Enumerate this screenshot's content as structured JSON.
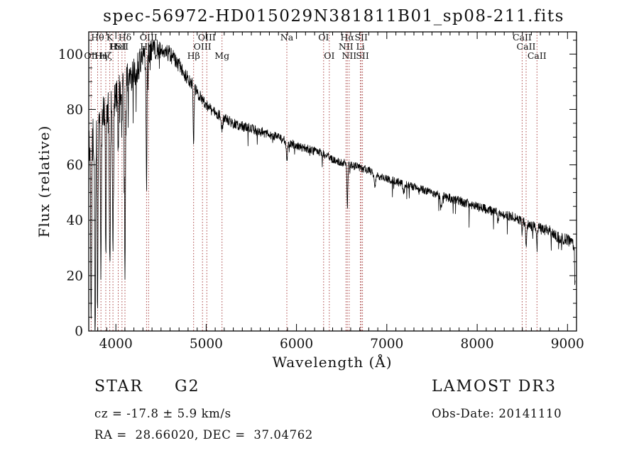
{
  "title": "spec-56972-HD015029N381811B01_sp08-211.fits",
  "chart_data": {
    "type": "line",
    "title": "spec-56972-HD015029N381811B01_sp08-211.fits",
    "xlabel": "Wavelength (Å)",
    "ylabel": "Flux (relative)",
    "xlim": [
      3700,
      9100
    ],
    "ylim": [
      0,
      108
    ],
    "x_ticks": [
      4000,
      5000,
      6000,
      7000,
      8000,
      9000
    ],
    "y_ticks": [
      0,
      20,
      40,
      60,
      80,
      100
    ],
    "grid": false,
    "trace_color": "#000000",
    "marker_color": "#aa4444",
    "label_color": "#1a1a1a",
    "continuum": [
      [
        3705,
        68
      ],
      [
        3770,
        70
      ],
      [
        3800,
        74
      ],
      [
        3850,
        78
      ],
      [
        3900,
        80
      ],
      [
        3950,
        82
      ],
      [
        4000,
        85
      ],
      [
        4050,
        88
      ],
      [
        4100,
        90
      ],
      [
        4150,
        92
      ],
      [
        4200,
        94
      ],
      [
        4250,
        96
      ],
      [
        4300,
        98
      ],
      [
        4350,
        100
      ],
      [
        4400,
        101
      ],
      [
        4450,
        102
      ],
      [
        4500,
        102
      ],
      [
        4550,
        101
      ],
      [
        4600,
        100
      ],
      [
        4650,
        98
      ],
      [
        4700,
        96
      ],
      [
        4750,
        93
      ],
      [
        4800,
        91
      ],
      [
        4850,
        89
      ],
      [
        4900,
        86
      ],
      [
        4950,
        84
      ],
      [
        5000,
        82
      ],
      [
        5050,
        80
      ],
      [
        5100,
        79
      ],
      [
        5150,
        78
      ],
      [
        5200,
        77
      ],
      [
        5300,
        75
      ],
      [
        5400,
        74
      ],
      [
        5500,
        73
      ],
      [
        5600,
        72
      ],
      [
        5700,
        71
      ],
      [
        5800,
        70
      ],
      [
        5900,
        68
      ],
      [
        6000,
        67
      ],
      [
        6100,
        66
      ],
      [
        6200,
        65
      ],
      [
        6300,
        64
      ],
      [
        6400,
        62
      ],
      [
        6500,
        61
      ],
      [
        6600,
        60
      ],
      [
        6700,
        59
      ],
      [
        6800,
        58
      ],
      [
        6900,
        56
      ],
      [
        7000,
        55
      ],
      [
        7100,
        54
      ],
      [
        7200,
        53
      ],
      [
        7300,
        52
      ],
      [
        7400,
        51
      ],
      [
        7500,
        50
      ],
      [
        7600,
        49
      ],
      [
        7700,
        48
      ],
      [
        7800,
        47
      ],
      [
        7900,
        46
      ],
      [
        8000,
        45
      ],
      [
        8100,
        44
      ],
      [
        8200,
        43
      ],
      [
        8300,
        42
      ],
      [
        8400,
        41
      ],
      [
        8500,
        40
      ],
      [
        8600,
        38
      ],
      [
        8700,
        37
      ],
      [
        8800,
        36
      ],
      [
        8900,
        34
      ],
      [
        9000,
        33
      ],
      [
        9085,
        30
      ]
    ],
    "absorption_lines": [
      {
        "wl": 3727,
        "depth": 68,
        "sigma": 5
      },
      {
        "wl": 3771,
        "depth": 75,
        "sigma": 5
      },
      {
        "wl": 3798,
        "depth": 68,
        "sigma": 5
      },
      {
        "wl": 3835,
        "depth": 60,
        "sigma": 5
      },
      {
        "wl": 3889,
        "depth": 55,
        "sigma": 5
      },
      {
        "wl": 3933,
        "depth": 60,
        "sigma": 6
      },
      {
        "wl": 3968,
        "depth": 55,
        "sigma": 6
      },
      {
        "wl": 4026,
        "depth": 22,
        "sigma": 4
      },
      {
        "wl": 4068,
        "depth": 18,
        "sigma": 4
      },
      {
        "wl": 4101,
        "depth": 68,
        "sigma": 5
      },
      {
        "wl": 4340,
        "depth": 48,
        "sigma": 5
      },
      {
        "wl": 4861,
        "depth": 20,
        "sigma": 5
      },
      {
        "wl": 5175,
        "depth": 5,
        "sigma": 8
      },
      {
        "wl": 5893,
        "depth": 7,
        "sigma": 6
      },
      {
        "wl": 6563,
        "depth": 15,
        "sigma": 5
      },
      {
        "wl": 6870,
        "depth": 4,
        "sigma": 8
      },
      {
        "wl": 7190,
        "depth": 3,
        "sigma": 8
      },
      {
        "wl": 7600,
        "depth": 5,
        "sigma": 9
      },
      {
        "wl": 8230,
        "depth": 3,
        "sigma": 8
      },
      {
        "wl": 8498,
        "depth": 6,
        "sigma": 5
      },
      {
        "wl": 8542,
        "depth": 8,
        "sigma": 5
      },
      {
        "wl": 8662,
        "depth": 8,
        "sigma": 5
      },
      {
        "wl": 9083,
        "depth": 14,
        "sigma": 4
      }
    ],
    "noise_profile": [
      [
        3705,
        9
      ],
      [
        3900,
        8
      ],
      [
        4000,
        7
      ],
      [
        4200,
        6
      ],
      [
        4400,
        4
      ],
      [
        4600,
        3
      ],
      [
        4800,
        2.5
      ],
      [
        5000,
        2
      ],
      [
        5500,
        1.8
      ],
      [
        6000,
        1.6
      ],
      [
        6500,
        1.5
      ],
      [
        7000,
        1.4
      ],
      [
        7500,
        1.5
      ],
      [
        8000,
        1.7
      ],
      [
        8500,
        1.9
      ],
      [
        9000,
        2.2
      ]
    ],
    "spectral_lines": [
      {
        "wl": 3727,
        "label": "OII",
        "row": 3
      },
      {
        "wl": 3798,
        "label": "Hθ",
        "row": 1
      },
      {
        "wl": 3835,
        "label": "Hη",
        "row": 3
      },
      {
        "wl": 3889,
        "label": "Hζ",
        "row": 3
      },
      {
        "wl": 3933,
        "label": "K",
        "row": 1
      },
      {
        "wl": 3968,
        "label": "H",
        "row": 2
      },
      {
        "wl": 4026,
        "label": "HeI",
        "row": 2
      },
      {
        "wl": 4068,
        "label": "SII",
        "row": 2
      },
      {
        "wl": 4101,
        "label": "Hδ",
        "row": 1
      },
      {
        "wl": 4340,
        "label": "Hγ",
        "row": 2
      },
      {
        "wl": 4363,
        "label": "OIII",
        "row": 1
      },
      {
        "wl": 4861,
        "label": "Hβ",
        "row": 3
      },
      {
        "wl": 4959,
        "label": "OIII",
        "row": 2
      },
      {
        "wl": 5007,
        "label": "OIII",
        "row": 1
      },
      {
        "wl": 5175,
        "label": "Mg",
        "row": 3
      },
      {
        "wl": 5893,
        "label": "Na",
        "row": 1
      },
      {
        "wl": 6300,
        "label": "OI",
        "row": 1
      },
      {
        "wl": 6363,
        "label": "OI",
        "row": 3
      },
      {
        "wl": 6548,
        "label": "NII",
        "row": 2
      },
      {
        "wl": 6563,
        "label": "Hα",
        "row": 1
      },
      {
        "wl": 6583,
        "label": "NII",
        "row": 3
      },
      {
        "wl": 6707,
        "label": "Li",
        "row": 2
      },
      {
        "wl": 6716,
        "label": "SII",
        "row": 1
      },
      {
        "wl": 6731,
        "label": "SII",
        "row": 3
      },
      {
        "wl": 8498,
        "label": "CaII",
        "row": 1
      },
      {
        "wl": 8542,
        "label": "CaII",
        "row": 2
      },
      {
        "wl": 8662,
        "label": "CaII",
        "row": 3
      }
    ]
  },
  "footer": {
    "object_type": "STAR",
    "spectral_class": "G2",
    "survey": "LAMOST DR3",
    "cz_line": "cz = -17.8 ± 5.9 km/s",
    "obs_date_line": "Obs-Date: 20141110",
    "ra_dec_line": "RA =  28.66020, DEC =  37.04762"
  }
}
